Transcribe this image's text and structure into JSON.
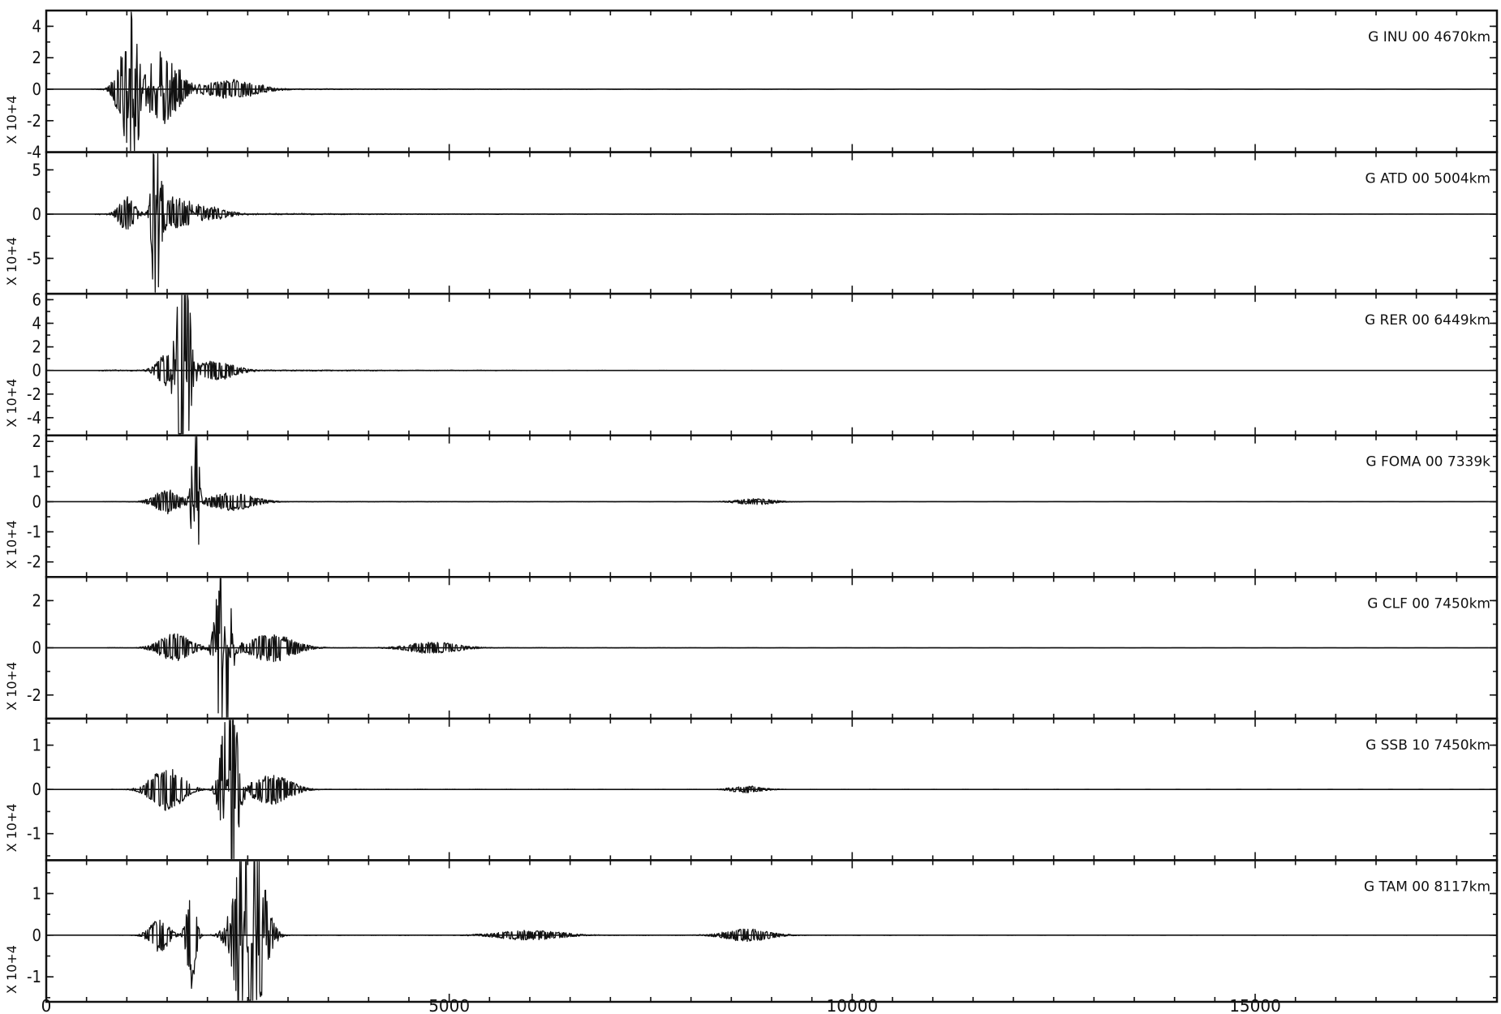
{
  "chart_data": {
    "type": "line",
    "title": "",
    "xlabel": "",
    "xlim": [
      0,
      18000
    ],
    "xticks": [
      0,
      5000,
      10000,
      15000
    ],
    "xtick_labels": [
      "0",
      "5000",
      "10000",
      "15000"
    ],
    "grid": false,
    "panels": [
      {
        "station": "G INU 00 4670km",
        "scale": "X 10+4",
        "ylim": [
          -4,
          5
        ],
        "yticks": [
          4,
          2,
          0,
          -2,
          -4
        ],
        "ytick_labels": [
          "4",
          "2",
          "0",
          "-2",
          "-4"
        ],
        "wavelets": [
          [
            1100,
            4.5,
            60
          ],
          [
            1050,
            -3.5,
            80
          ],
          [
            950,
            2,
            120
          ],
          [
            1500,
            1.5,
            250
          ],
          [
            1400,
            -1.2,
            200
          ],
          [
            2300,
            0.6,
            400
          ]
        ],
        "noise": 0.08,
        "decay_end": 3200
      },
      {
        "station": "G ATD 00 5004km",
        "scale": "X 10+4",
        "ylim": [
          -9,
          7
        ],
        "yticks": [
          5,
          0,
          -5
        ],
        "ytick_labels": [
          "5",
          "0",
          "-5"
        ],
        "wavelets": [
          [
            1350,
            6,
            60
          ],
          [
            1380,
            -8.5,
            60
          ],
          [
            1000,
            2,
            120
          ],
          [
            1600,
            1.8,
            250
          ],
          [
            2000,
            0.8,
            300
          ]
        ],
        "noise": 0.12,
        "decay_end": 3000
      },
      {
        "station": "G RER 00 6449km",
        "scale": "X 10+4",
        "ylim": [
          -5.5,
          6.5
        ],
        "yticks": [
          6,
          4,
          2,
          0,
          -2,
          -4
        ],
        "ytick_labels": [
          "6",
          "4",
          "2",
          "0",
          "-2",
          "-4"
        ],
        "wavelets": [
          [
            1700,
            6,
            90
          ],
          [
            1700,
            -5,
            110
          ],
          [
            1500,
            1.5,
            150
          ],
          [
            2100,
            0.8,
            300
          ]
        ],
        "noise": 0.1,
        "decay_end": 3300
      },
      {
        "station": "G FOMA 00 7339k",
        "scale": "X 10+4",
        "ylim": [
          -2.5,
          2.2
        ],
        "yticks": [
          2,
          1,
          0,
          -1,
          -2
        ],
        "ytick_labels": [
          "2",
          "1",
          "0",
          "-1",
          "-2"
        ],
        "wavelets": [
          [
            1850,
            2.1,
            40
          ],
          [
            1850,
            -2.3,
            55
          ],
          [
            1500,
            0.4,
            200
          ],
          [
            2300,
            0.3,
            350
          ],
          [
            8800,
            0.1,
            300
          ]
        ],
        "noise": 0.03,
        "decay_end": 4800
      },
      {
        "station": "G CLF 00 7450km",
        "scale": "X 10+4",
        "ylim": [
          -3,
          3
        ],
        "yticks": [
          2,
          0,
          -2
        ],
        "ytick_labels": [
          "2",
          "0",
          "-2"
        ],
        "wavelets": [
          [
            2200,
            2.8,
            90
          ],
          [
            2200,
            -2.7,
            110
          ],
          [
            1600,
            0.6,
            250
          ],
          [
            2800,
            0.6,
            350
          ],
          [
            4800,
            0.25,
            400
          ]
        ],
        "noise": 0.04,
        "decay_end": 5200
      },
      {
        "station": "G SSB 10 7450km",
        "scale": "X 10+4",
        "ylim": [
          -1.6,
          1.6
        ],
        "yticks": [
          1,
          0,
          -1
        ],
        "ytick_labels": [
          "1",
          "0",
          "-1"
        ],
        "wavelets": [
          [
            2250,
            1.4,
            110
          ],
          [
            2300,
            -1.5,
            110
          ],
          [
            1500,
            0.5,
            250
          ],
          [
            2800,
            0.35,
            300
          ],
          [
            8700,
            0.08,
            250
          ]
        ],
        "noise": 0.03,
        "decay_end": 6000
      },
      {
        "station": "G TAM 00 8117km",
        "scale": "X 10+4",
        "ylim": [
          -1.6,
          1.8
        ],
        "yticks": [
          1,
          0,
          -1
        ],
        "ytick_labels": [
          "1",
          "0",
          "-1"
        ],
        "wavelets": [
          [
            1800,
            1.3,
            70
          ],
          [
            2500,
            1.6,
            200
          ],
          [
            2550,
            -1.5,
            200
          ],
          [
            1400,
            0.4,
            150
          ],
          [
            8700,
            0.15,
            350
          ],
          [
            6000,
            0.12,
            500
          ]
        ],
        "noise": 0.04,
        "decay_end": 9300
      }
    ]
  }
}
